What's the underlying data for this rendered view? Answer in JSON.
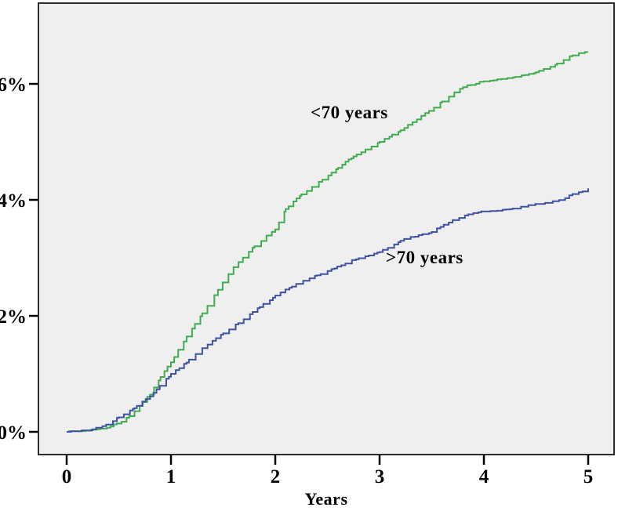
{
  "chart_data": {
    "type": "line",
    "subtype": "step-cumulative-incidence",
    "title": "",
    "xlabel": "Years",
    "ylabel": "",
    "xlim": [
      0,
      5
    ],
    "ylim": [
      0,
      6.9
    ],
    "grid": false,
    "legend_position": "inline-annotations",
    "plot_background_color": "#efefef",
    "frame_color": "#2e2e2e",
    "x_ticks": [
      {
        "value": 0,
        "label": "0"
      },
      {
        "value": 1,
        "label": "1"
      },
      {
        "value": 2,
        "label": "2"
      },
      {
        "value": 3,
        "label": "3"
      },
      {
        "value": 4,
        "label": "4"
      },
      {
        "value": 5,
        "label": "5"
      }
    ],
    "y_ticks": [
      {
        "value": 0,
        "label": "0%"
      },
      {
        "value": 2,
        "label": "2%"
      },
      {
        "value": 4,
        "label": "4%"
      },
      {
        "value": 6,
        "label": "6%"
      }
    ],
    "series": [
      {
        "name": "<70 years",
        "color": "#3fad4f",
        "points": [
          [
            0,
            0
          ],
          [
            0.2,
            0.02
          ],
          [
            0.35,
            0.06
          ],
          [
            0.5,
            0.15
          ],
          [
            0.6,
            0.28
          ],
          [
            0.7,
            0.45
          ],
          [
            0.8,
            0.65
          ],
          [
            0.9,
            0.95
          ],
          [
            1.0,
            1.2
          ],
          [
            1.15,
            1.65
          ],
          [
            1.3,
            2.05
          ],
          [
            1.45,
            2.45
          ],
          [
            1.6,
            2.85
          ],
          [
            1.8,
            3.2
          ],
          [
            2.0,
            3.5
          ],
          [
            2.1,
            3.85
          ],
          [
            2.25,
            4.1
          ],
          [
            2.45,
            4.35
          ],
          [
            2.6,
            4.55
          ],
          [
            2.75,
            4.75
          ],
          [
            3.0,
            5.0
          ],
          [
            3.2,
            5.2
          ],
          [
            3.4,
            5.45
          ],
          [
            3.6,
            5.7
          ],
          [
            3.8,
            5.95
          ],
          [
            4.0,
            6.05
          ],
          [
            4.3,
            6.12
          ],
          [
            4.5,
            6.2
          ],
          [
            4.7,
            6.35
          ],
          [
            4.85,
            6.5
          ],
          [
            5.0,
            6.55
          ]
        ]
      },
      {
        "name": ">70 years",
        "color": "#3e52a0",
        "points": [
          [
            0,
            0
          ],
          [
            0.2,
            0.03
          ],
          [
            0.35,
            0.1
          ],
          [
            0.5,
            0.25
          ],
          [
            0.65,
            0.42
          ],
          [
            0.8,
            0.62
          ],
          [
            0.9,
            0.8
          ],
          [
            1.0,
            1.0
          ],
          [
            1.15,
            1.2
          ],
          [
            1.3,
            1.45
          ],
          [
            1.5,
            1.7
          ],
          [
            1.7,
            1.95
          ],
          [
            1.85,
            2.15
          ],
          [
            2.0,
            2.35
          ],
          [
            2.2,
            2.55
          ],
          [
            2.4,
            2.7
          ],
          [
            2.6,
            2.85
          ],
          [
            2.8,
            3.0
          ],
          [
            3.0,
            3.1
          ],
          [
            3.2,
            3.3
          ],
          [
            3.5,
            3.45
          ],
          [
            3.7,
            3.65
          ],
          [
            3.85,
            3.75
          ],
          [
            4.0,
            3.8
          ],
          [
            4.3,
            3.85
          ],
          [
            4.5,
            3.93
          ],
          [
            4.6,
            3.95
          ],
          [
            4.75,
            4.0
          ],
          [
            4.85,
            4.1
          ],
          [
            4.95,
            4.15
          ],
          [
            5.0,
            4.2
          ]
        ]
      }
    ]
  }
}
